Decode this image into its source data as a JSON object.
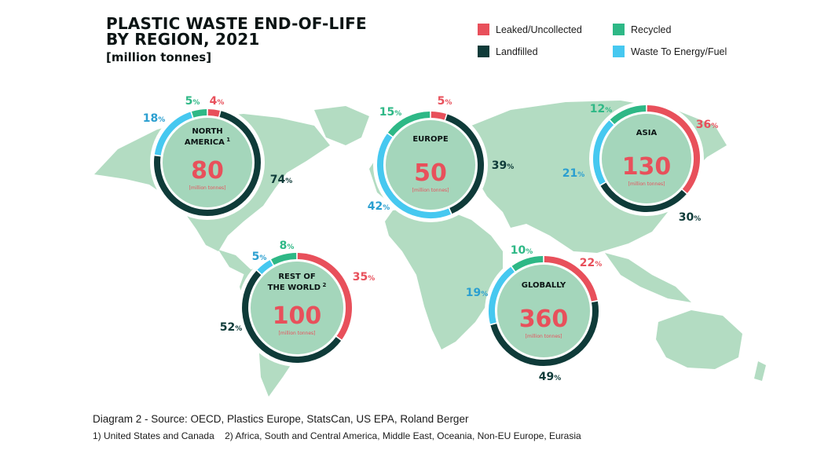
{
  "title": "PLASTIC WASTE END-OF-LIFE",
  "title_line2": "BY REGION, 2021",
  "subtitle": "[million tonnes]",
  "colors": {
    "leaked": "#e8505b",
    "landfilled": "#0f3b39",
    "recycled": "#2eb886",
    "energy": "#46c8f0",
    "map": "#b3dcc2",
    "center": "#a4d6bb"
  },
  "legend": [
    {
      "label": "Leaked/Uncollected",
      "key": "leaked"
    },
    {
      "label": "Recycled",
      "key": "recycled"
    },
    {
      "label": "Landfilled",
      "key": "landfilled"
    },
    {
      "label": "Waste To Energy/Fuel",
      "key": "energy"
    }
  ],
  "chart_data": {
    "type": "pie",
    "categories": [
      "Leaked/Uncollected",
      "Landfilled",
      "Waste To Energy/Fuel",
      "Recycled"
    ],
    "regions": [
      {
        "id": "north-america",
        "name_lines": [
          "NORTH",
          "AMERICA"
        ],
        "footnote": "1",
        "total": "80",
        "unit": "[million tonnes]",
        "values": [
          4,
          74,
          18,
          5
        ]
      },
      {
        "id": "europe",
        "name_lines": [
          "EUROPE"
        ],
        "footnote": "",
        "total": "50",
        "unit": "[million tonnes]",
        "values": [
          5,
          39,
          42,
          15
        ]
      },
      {
        "id": "asia",
        "name_lines": [
          "ASIA"
        ],
        "footnote": "",
        "total": "130",
        "unit": "[million tonnes]",
        "values": [
          36,
          30,
          21,
          12
        ]
      },
      {
        "id": "rest-of-world",
        "name_lines": [
          "REST OF",
          "THE WORLD"
        ],
        "footnote": "2",
        "total": "100",
        "unit": "[million tonnes]",
        "values": [
          35,
          52,
          5,
          8
        ]
      },
      {
        "id": "globally",
        "name_lines": [
          "GLOBALLY"
        ],
        "footnote": "",
        "total": "360",
        "unit": "[million tonnes]",
        "values": [
          22,
          49,
          19,
          10
        ]
      }
    ]
  },
  "source": "Diagram 2 - Source: OECD, Plastics Europe, StatsCan, US EPA, Roland Berger",
  "notes": [
    "1) United States and Canada",
    "2) Africa, South and Central America, Middle East, Oceania, Non-EU Europe, Eurasia"
  ]
}
